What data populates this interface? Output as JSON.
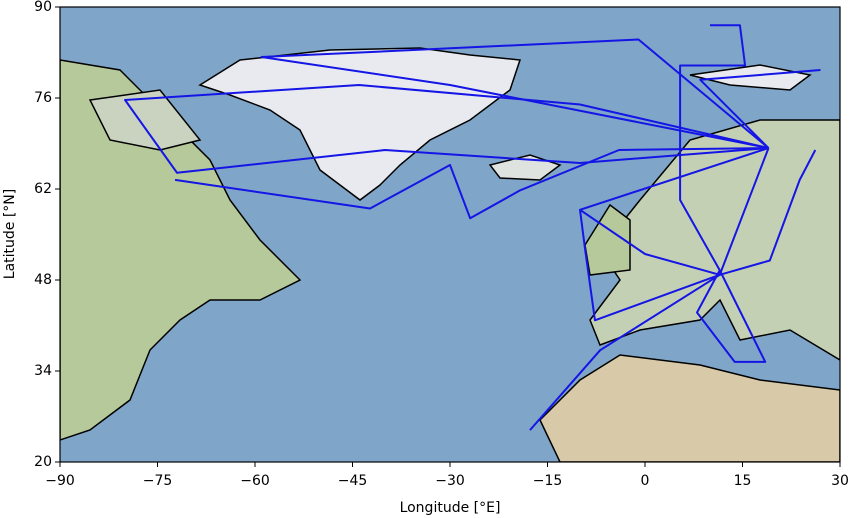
{
  "chart_data": {
    "type": "track-map",
    "xlabel": "Longitude [°E]",
    "ylabel": "Latitude [°N]",
    "xlim": [
      -90,
      30
    ],
    "ylim": [
      20,
      90
    ],
    "xticks": [
      {
        "value": -90,
        "label": "−90"
      },
      {
        "value": -75,
        "label": "−75"
      },
      {
        "value": -60,
        "label": "−60"
      },
      {
        "value": -45,
        "label": "−45"
      },
      {
        "value": -30,
        "label": "−30"
      },
      {
        "value": -15,
        "label": "−15"
      },
      0,
      15,
      30
    ],
    "yticks": [
      20,
      34,
      48,
      62,
      76,
      90
    ],
    "series": [
      {
        "color": "#1515e6",
        "x": [
          19,
          -10,
          -44,
          -80,
          -72,
          -40,
          -10,
          19
        ],
        "y": [
          68.3,
          75,
          78,
          75.7,
          64.5,
          68,
          66,
          68.3
        ]
      },
      {
        "color": "#1515e6",
        "x": [
          19,
          -1,
          -59,
          -30,
          19
        ],
        "y": [
          68.3,
          85,
          82.3,
          78,
          68.3
        ]
      },
      {
        "color": "#1515e6",
        "x": [
          -17.7,
          -6.9,
          11.5,
          19
        ],
        "y": [
          24.9,
          37.2,
          48.8,
          68.3
        ]
      },
      {
        "color": "#1515e6",
        "x": [
          19,
          -10,
          -9.2,
          -7.7,
          11.5,
          0,
          -10
        ],
        "y": [
          68.3,
          58.8,
          52.6,
          41.8,
          48.8,
          52,
          58.8
        ]
      },
      {
        "color": "#1515e6",
        "x": [
          11.5,
          18.5,
          13.8,
          8,
          11.5
        ],
        "y": [
          49.5,
          35.4,
          35.4,
          43,
          49.5
        ]
      },
      {
        "color": "#1515e6",
        "x": [
          10,
          14.6,
          15.4,
          5.4,
          5.4,
          11.5
        ],
        "y": [
          87.2,
          87.2,
          81,
          81,
          60.3,
          49.5
        ]
      },
      {
        "color": "#1515e6",
        "x": [
          -72.3,
          -42.3,
          -30,
          -26.9,
          -19.2,
          -4,
          19
        ],
        "y": [
          63.4,
          59,
          65.7,
          57.5,
          61.8,
          68,
          68.3
        ]
      },
      {
        "color": "#1515e6",
        "x": [
          26.2,
          23.8,
          19.2,
          11.5
        ],
        "y": [
          68,
          63.4,
          51,
          48.8
        ]
      },
      {
        "color": "#1515e6",
        "x": [
          27,
          8.5,
          19
        ],
        "y": [
          80.3,
          78.8,
          68.3
        ]
      }
    ]
  }
}
